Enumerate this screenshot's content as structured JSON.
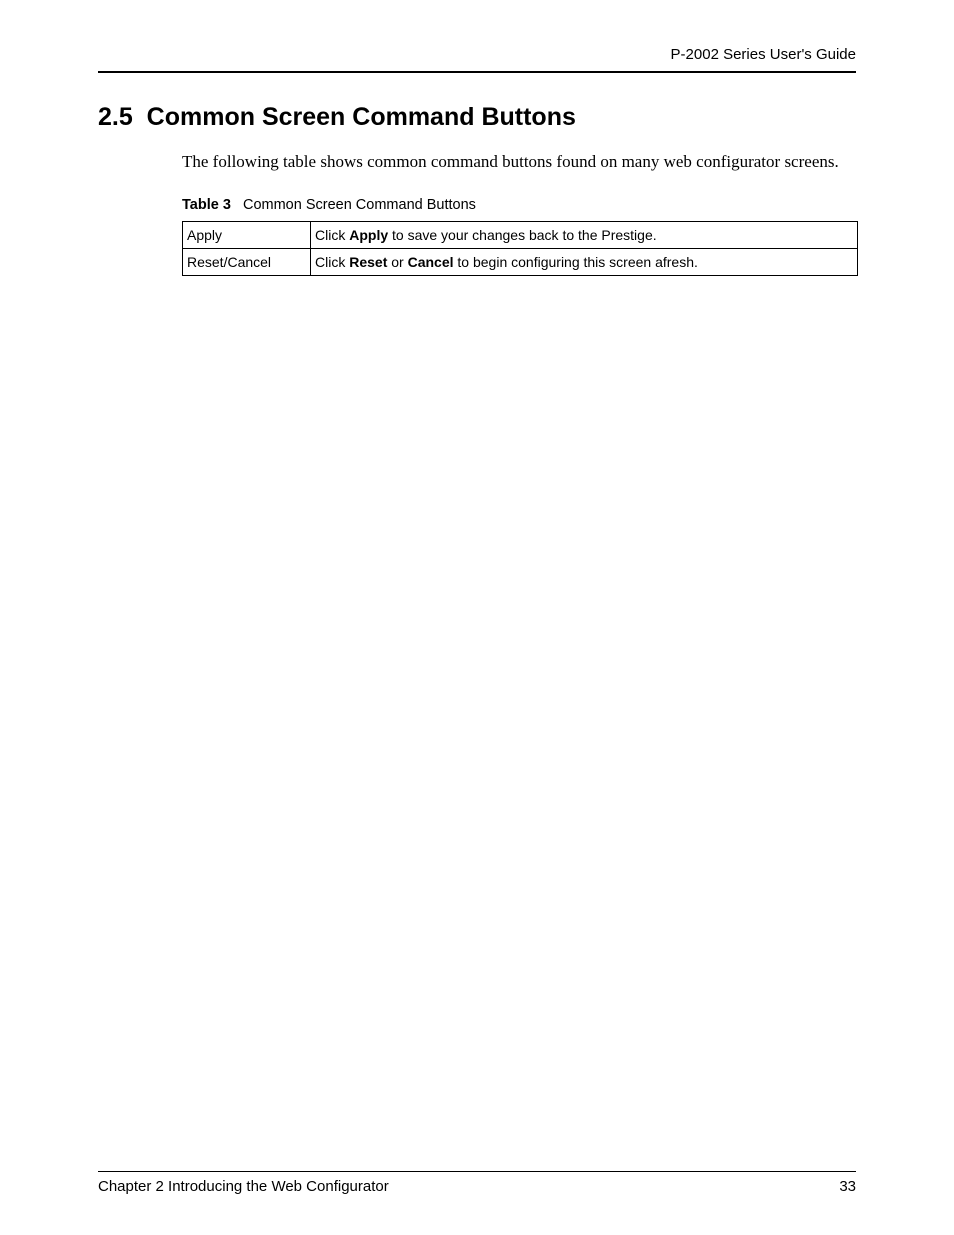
{
  "header": {
    "guide_title": "P-2002 Series User's Guide"
  },
  "section": {
    "number": "2.5",
    "title": "Common Screen Command Buttons",
    "intro": "The following table shows common command buttons found on many web configurator screens."
  },
  "table": {
    "caption_label": "Table 3",
    "caption_text": "Common Screen Command Buttons",
    "rows": [
      {
        "label": "Apply",
        "desc_prefix": "Click ",
        "desc_bold1": "Apply",
        "desc_mid": " to save your changes back to the Prestige.",
        "desc_bold2": "",
        "desc_suffix": ""
      },
      {
        "label": "Reset/Cancel",
        "desc_prefix": "Click ",
        "desc_bold1": "Reset",
        "desc_mid": " or ",
        "desc_bold2": "Cancel",
        "desc_suffix": " to begin configuring this screen afresh."
      }
    ]
  },
  "footer": {
    "chapter": "Chapter 2 Introducing the Web Configurator",
    "page": "33"
  }
}
